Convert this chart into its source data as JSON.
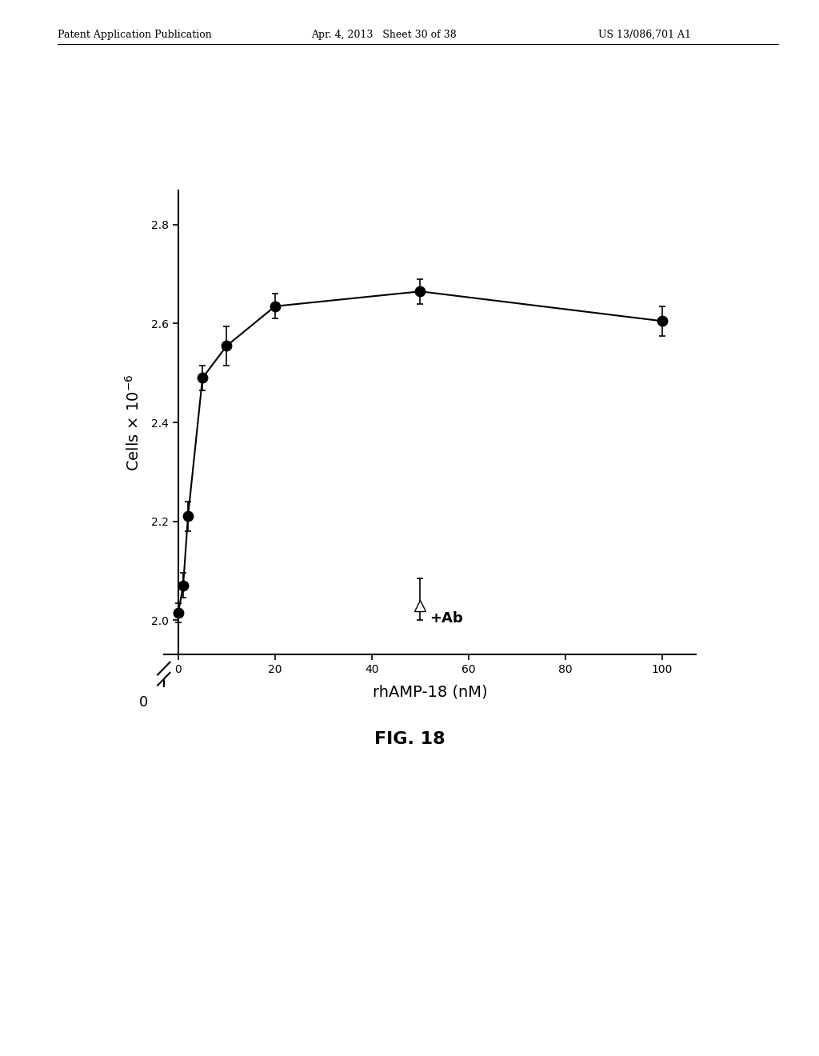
{
  "main_x": [
    0,
    1,
    2,
    5,
    10,
    20,
    50,
    100
  ],
  "main_y": [
    2.015,
    2.07,
    2.21,
    2.49,
    2.555,
    2.635,
    2.665,
    2.605
  ],
  "main_yerr": [
    0.02,
    0.025,
    0.03,
    0.025,
    0.04,
    0.025,
    0.025,
    0.03
  ],
  "ab_x": 50,
  "ab_y": 2.03,
  "ab_yerr_upper": 0.055,
  "ab_yerr_lower": 0.03,
  "xlabel": "rhAMP-18 (nM)",
  "title": "FIG. 18",
  "xlim": [
    -3,
    107
  ],
  "ylim_display": [
    1.93,
    2.87
  ],
  "yticks": [
    2.0,
    2.2,
    2.4,
    2.6,
    2.8
  ],
  "xticks": [
    0,
    20,
    40,
    60,
    80,
    100
  ],
  "background_color": "#ffffff",
  "line_color": "#000000",
  "marker_color": "#000000",
  "ab_label": "+Ab",
  "header_left": "Patent Application Publication",
  "header_mid": "Apr. 4, 2013   Sheet 30 of 38",
  "header_right": "US 13/086,701 A1"
}
